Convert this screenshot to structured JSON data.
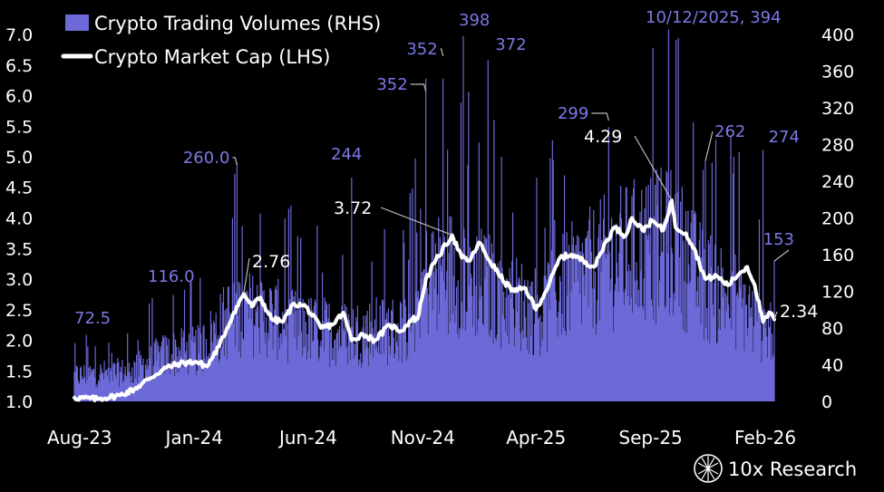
{
  "chart_data": {
    "type": "bar+line",
    "legend": {
      "placement": "top-left",
      "items": [
        {
          "label": "Crypto Trading Volumes (RHS)",
          "kind": "bar",
          "color": "#6d6ad8"
        },
        {
          "label": "Crypto Market Cap (LHS)",
          "kind": "line",
          "color": "#ffffff"
        }
      ]
    },
    "y_left": {
      "ticks": [
        "1.0",
        "1.5",
        "2.0",
        "2.5",
        "3.0",
        "3.5",
        "4.0",
        "4.5",
        "5.0",
        "5.5",
        "6.0",
        "6.5",
        "7.0"
      ],
      "range": [
        1.0,
        7.0
      ]
    },
    "y_right": {
      "ticks": [
        "0",
        "40",
        "80",
        "120",
        "160",
        "200",
        "240",
        "280",
        "320",
        "360",
        "400"
      ],
      "range": [
        0,
        400
      ]
    },
    "x_ticks": [
      "Aug-23",
      "Jan-24",
      "Jun-24",
      "Nov-24",
      "Apr-25",
      "Sep-25",
      "Feb-26"
    ],
    "x_range": [
      "2023-08-01",
      "2026-02-20"
    ],
    "grid": false,
    "market_cap": {
      "name": "Crypto Market Cap (LHS)",
      "color": "#ffffff",
      "points": [
        [
          "2023-08-01",
          1.06
        ],
        [
          "2023-09-01",
          1.04
        ],
        [
          "2023-10-01",
          1.1
        ],
        [
          "2023-10-20",
          1.2
        ],
        [
          "2023-11-10",
          1.38
        ],
        [
          "2023-12-01",
          1.55
        ],
        [
          "2023-12-20",
          1.62
        ],
        [
          "2024-01-10",
          1.65
        ],
        [
          "2024-01-25",
          1.57
        ],
        [
          "2024-02-10",
          1.9
        ],
        [
          "2024-02-28",
          2.4
        ],
        [
          "2024-03-14",
          2.76
        ],
        [
          "2024-03-25",
          2.55
        ],
        [
          "2024-04-05",
          2.7
        ],
        [
          "2024-04-20",
          2.35
        ],
        [
          "2024-05-05",
          2.3
        ],
        [
          "2024-05-20",
          2.6
        ],
        [
          "2024-06-05",
          2.55
        ],
        [
          "2024-06-25",
          2.2
        ],
        [
          "2024-07-10",
          2.25
        ],
        [
          "2024-07-25",
          2.45
        ],
        [
          "2024-08-05",
          2.0
        ],
        [
          "2024-08-20",
          2.1
        ],
        [
          "2024-09-05",
          2.0
        ],
        [
          "2024-09-25",
          2.25
        ],
        [
          "2024-10-10",
          2.15
        ],
        [
          "2024-10-25",
          2.35
        ],
        [
          "2024-11-01",
          2.35
        ],
        [
          "2024-11-12",
          3.0
        ],
        [
          "2024-11-25",
          3.3
        ],
        [
          "2024-12-17",
          3.72
        ],
        [
          "2024-12-30",
          3.35
        ],
        [
          "2025-01-10",
          3.3
        ],
        [
          "2025-01-22",
          3.6
        ],
        [
          "2025-02-05",
          3.3
        ],
        [
          "2025-02-25",
          2.95
        ],
        [
          "2025-03-10",
          2.8
        ],
        [
          "2025-03-25",
          2.85
        ],
        [
          "2025-04-08",
          2.5
        ],
        [
          "2025-04-25",
          2.9
        ],
        [
          "2025-05-10",
          3.35
        ],
        [
          "2025-05-25",
          3.4
        ],
        [
          "2025-06-10",
          3.3
        ],
        [
          "2025-06-25",
          3.2
        ],
        [
          "2025-07-10",
          3.6
        ],
        [
          "2025-07-22",
          3.85
        ],
        [
          "2025-08-05",
          3.7
        ],
        [
          "2025-08-14",
          4.0
        ],
        [
          "2025-08-28",
          3.8
        ],
        [
          "2025-09-10",
          3.95
        ],
        [
          "2025-09-25",
          3.8
        ],
        [
          "2025-10-06",
          4.29
        ],
        [
          "2025-10-11",
          3.85
        ],
        [
          "2025-10-25",
          3.75
        ],
        [
          "2025-11-05",
          3.5
        ],
        [
          "2025-11-20",
          3.0
        ],
        [
          "2025-12-05",
          3.05
        ],
        [
          "2025-12-20",
          2.9
        ],
        [
          "2026-01-05",
          3.1
        ],
        [
          "2026-01-15",
          3.2
        ],
        [
          "2026-01-25",
          2.9
        ],
        [
          "2026-02-05",
          2.3
        ],
        [
          "2026-02-15",
          2.45
        ],
        [
          "2026-02-20",
          2.34
        ]
      ]
    },
    "trading_volumes": {
      "name": "Crypto Trading Volumes (RHS)",
      "color": "#6d6ad8",
      "baseline": [
        [
          "2023-08-01",
          30
        ],
        [
          "2023-10-15",
          35
        ],
        [
          "2023-12-01",
          55
        ],
        [
          "2024-01-15",
          60
        ],
        [
          "2024-03-01",
          105
        ],
        [
          "2024-04-15",
          100
        ],
        [
          "2024-06-01",
          85
        ],
        [
          "2024-08-01",
          80
        ],
        [
          "2024-10-15",
          85
        ],
        [
          "2024-11-15",
          145
        ],
        [
          "2024-12-20",
          155
        ],
        [
          "2025-02-01",
          135
        ],
        [
          "2025-03-15",
          115
        ],
        [
          "2025-04-15",
          105
        ],
        [
          "2025-05-15",
          135
        ],
        [
          "2025-07-15",
          165
        ],
        [
          "2025-09-01",
          180
        ],
        [
          "2025-10-10",
          185
        ],
        [
          "2025-11-15",
          140
        ],
        [
          "2026-01-01",
          120
        ],
        [
          "2026-02-01",
          90
        ],
        [
          "2026-02-20",
          85
        ]
      ],
      "spikes": [
        {
          "date": "2023-08-17",
          "value": 72.5,
          "label": "72.5"
        },
        {
          "date": "2023-12-11",
          "value": 116.0,
          "label": "116.0"
        },
        {
          "date": "2024-03-05",
          "value": 260.0,
          "label": "260.0"
        },
        {
          "date": "2024-08-05",
          "value": 244,
          "label": "244"
        },
        {
          "date": "2024-11-12",
          "value": 352,
          "label": "352"
        },
        {
          "date": "2024-12-05",
          "value": 352,
          "label": "352"
        },
        {
          "date": "2025-01-01",
          "value": 398,
          "label": "398"
        },
        {
          "date": "2025-02-03",
          "value": 372,
          "label": "372"
        },
        {
          "date": "2025-07-14",
          "value": 299,
          "label": "299"
        },
        {
          "date": "2025-10-12",
          "value": 394,
          "label": "10/12/2025, 394"
        },
        {
          "date": "2025-11-20",
          "value": 262,
          "label": "262"
        },
        {
          "date": "2026-02-05",
          "value": 274,
          "label": "274"
        },
        {
          "date": "2026-02-20",
          "value": 153,
          "label": "153"
        }
      ]
    },
    "cap_annotations": [
      {
        "date": "2024-03-14",
        "value": 2.76,
        "label": "2.76"
      },
      {
        "date": "2024-12-17",
        "value": 3.72,
        "label": "3.72"
      },
      {
        "date": "2025-10-06",
        "value": 4.29,
        "label": "4.29"
      },
      {
        "date": "2026-02-20",
        "value": 2.34,
        "label": "2.34"
      }
    ]
  },
  "brand": {
    "name": "10x Research",
    "logo_icon": "10x-research-logo-icon"
  }
}
